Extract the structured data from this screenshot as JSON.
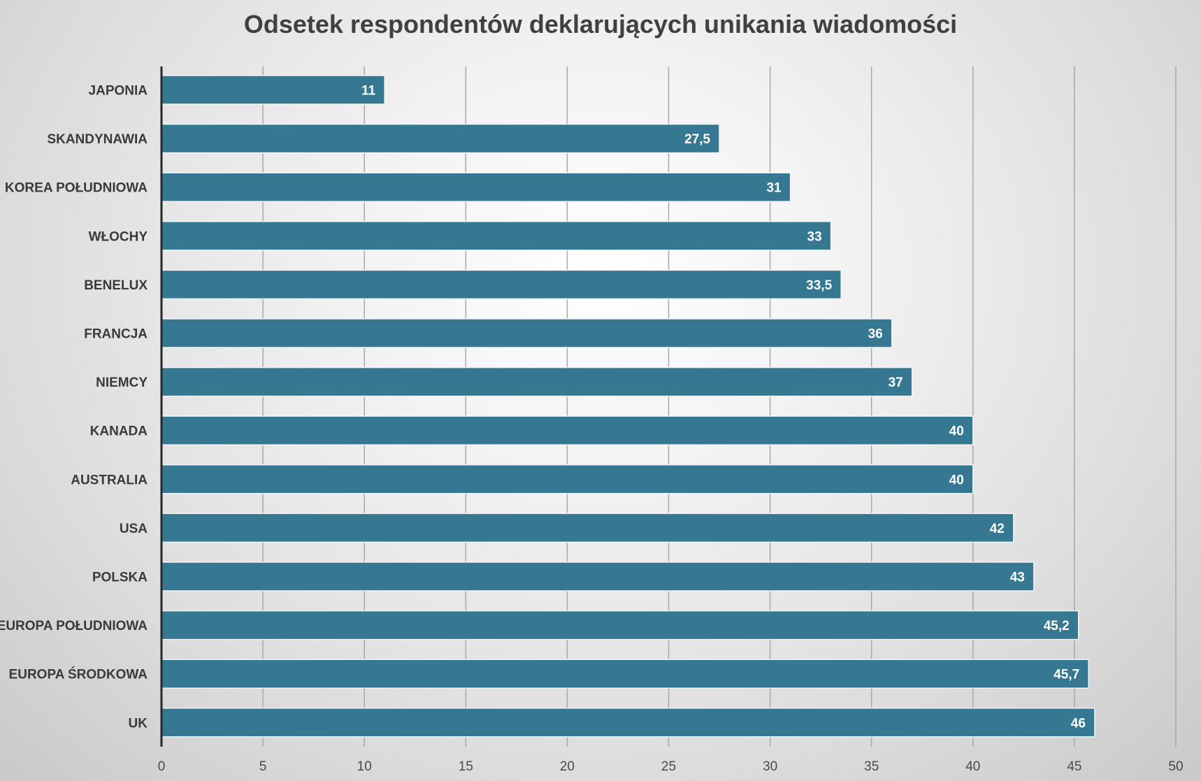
{
  "chart_data": {
    "type": "bar",
    "orientation": "horizontal",
    "title": "Odsetek respondentów deklarujących unikania wiadomości",
    "categories": [
      "JAPONIA",
      "SKANDYNAWIA",
      "KOREA POŁUDNIOWA",
      "WŁOCHY",
      "BENELUX",
      "FRANCJA",
      "NIEMCY",
      "KANADA",
      "AUSTRALIA",
      "USA",
      "POLSKA",
      "EUROPA POŁUDNIOWA",
      "EUROPA ŚRODKOWA",
      "UK"
    ],
    "values": [
      11,
      27.5,
      31,
      33,
      33.5,
      36,
      37,
      40,
      40,
      42,
      43,
      45.2,
      45.7,
      46
    ],
    "value_labels": [
      "11",
      "27,5",
      "31",
      "33",
      "33,5",
      "36",
      "37",
      "40",
      "40",
      "42",
      "43",
      "45,2",
      "45,7",
      "46"
    ],
    "xlim": [
      0,
      50
    ],
    "xticks": [
      0,
      5,
      10,
      15,
      20,
      25,
      30,
      35,
      40,
      45,
      50
    ],
    "xlabel": "",
    "ylabel": "",
    "grid": "vertical",
    "legend": "none",
    "colors": {
      "bar": "#367892",
      "bar_edge": "#f4f4f4",
      "value_label": "#ffffff",
      "category_label": "#3a3a3a",
      "tick_label": "#4a4a4a",
      "axis_line": "#262626",
      "gridline": "#a8a8a8",
      "title": "#404040"
    }
  }
}
